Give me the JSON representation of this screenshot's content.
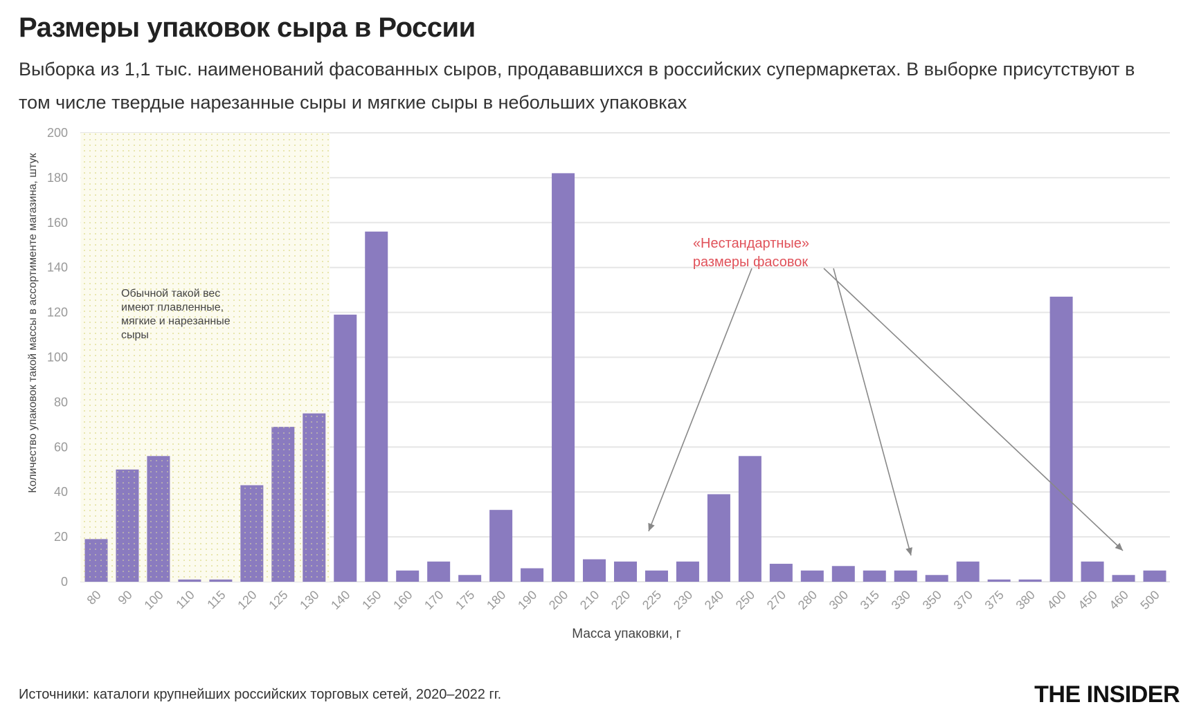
{
  "header": {
    "title": "Размеры упаковок сыра в России",
    "subtitle": "Выборка из 1,1 тыс. наименований фасованных сыров, продававшихся в российских супермаркетах. В выборке присутствуют в том числе твердые нарезанные сыры и мягкие сыры в небольших упаковках"
  },
  "footer": {
    "source": "Источники: каталоги крупнейших российских торговых сетей, 2020–2022 гг.",
    "logo": "THE INSIDER"
  },
  "chart_data": {
    "type": "bar",
    "xlabel": "Масса упаковки, г",
    "ylabel": "Количество упаковок такой массы в ассортименте магазина, штук",
    "ylim": [
      0,
      200
    ],
    "yticks": [
      0,
      20,
      40,
      60,
      80,
      100,
      120,
      140,
      160,
      180,
      200
    ],
    "grid": true,
    "bar_color": "#8a7bbf",
    "categories": [
      "80",
      "90",
      "100",
      "110",
      "115",
      "120",
      "125",
      "130",
      "140",
      "150",
      "160",
      "170",
      "175",
      "180",
      "190",
      "200",
      "210",
      "220",
      "225",
      "230",
      "240",
      "250",
      "270",
      "280",
      "300",
      "315",
      "330",
      "350",
      "370",
      "375",
      "380",
      "400",
      "450",
      "460",
      "500"
    ],
    "values": [
      19,
      50,
      56,
      1,
      1,
      43,
      69,
      75,
      119,
      156,
      5,
      9,
      3,
      32,
      6,
      182,
      10,
      9,
      5,
      9,
      39,
      56,
      8,
      5,
      7,
      5,
      5,
      3,
      9,
      1,
      1,
      127,
      9,
      3,
      5
    ],
    "highlight_region": {
      "from_category": "80",
      "to_category": "130",
      "color": "#f3f0c8",
      "note": [
        "Обычной такой вес",
        "имеют плавленные,",
        "мягкие и нарезанные",
        "сыры"
      ]
    },
    "annotation": {
      "lines": [
        "«Нестандартные»",
        "размеры фасовок"
      ],
      "color": "#e0525a",
      "points_to": [
        "225",
        "330",
        "460"
      ]
    }
  }
}
